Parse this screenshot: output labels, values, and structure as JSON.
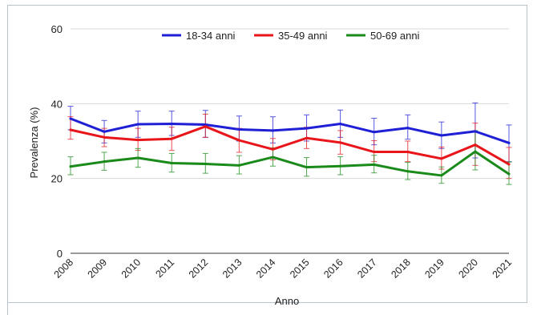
{
  "chart_data": {
    "type": "line",
    "xlabel": "Anno",
    "ylabel": "Prevalenza (%)",
    "ylim": [
      0,
      60
    ],
    "yticks": [
      "0",
      "20",
      "40",
      "60"
    ],
    "grid": "horizontal",
    "legend_position": "top",
    "categories": [
      "2008",
      "2009",
      "2010",
      "2011",
      "2012",
      "2013",
      "2014",
      "2015",
      "2016",
      "2017",
      "2018",
      "2019",
      "2020",
      "2021"
    ],
    "series": [
      {
        "name": "18-34 anni",
        "color": "#1f1fd6",
        "values": [
          36.0,
          32.5,
          34.5,
          34.6,
          34.4,
          33.1,
          32.8,
          33.4,
          34.6,
          32.4,
          33.5,
          31.5,
          32.6,
          29.5
        ],
        "error_low": [
          33.0,
          29.5,
          31.0,
          31.5,
          31.0,
          30.0,
          29.5,
          30.0,
          31.0,
          29.0,
          30.5,
          28.0,
          25.5,
          24.5
        ],
        "error_high": [
          39.3,
          35.5,
          38.0,
          38.0,
          38.2,
          36.7,
          36.5,
          37.0,
          38.3,
          36.1,
          37.0,
          35.1,
          40.2,
          34.3
        ]
      },
      {
        "name": "35-49 anni",
        "color": "#e8161b",
        "values": [
          33.0,
          31.0,
          30.3,
          30.6,
          33.9,
          30.2,
          27.8,
          30.8,
          29.6,
          27.1,
          27.1,
          25.3,
          29.0,
          23.8
        ],
        "error_low": [
          30.5,
          28.5,
          27.5,
          27.5,
          31.0,
          27.0,
          25.0,
          28.0,
          26.5,
          24.5,
          24.5,
          22.5,
          23.5,
          20.0
        ],
        "error_high": [
          36.5,
          33.4,
          33.4,
          33.7,
          37.2,
          33.4,
          30.7,
          33.7,
          32.8,
          30.1,
          30.0,
          28.4,
          34.8,
          28.3
        ]
      },
      {
        "name": "50-69 anni",
        "color": "#1a8a1a",
        "values": [
          23.2,
          24.5,
          25.5,
          24.1,
          23.9,
          23.5,
          25.7,
          23.0,
          23.3,
          23.7,
          21.9,
          20.8,
          27.2,
          21.2
        ],
        "error_low": [
          21.0,
          22.2,
          23.0,
          21.7,
          21.4,
          21.2,
          23.3,
          20.6,
          21.0,
          21.5,
          19.7,
          18.7,
          22.3,
          18.4
        ],
        "error_high": [
          25.8,
          27.0,
          28.0,
          26.7,
          26.7,
          26.1,
          28.2,
          25.6,
          25.8,
          26.2,
          24.3,
          23.1,
          32.8,
          24.4
        ]
      }
    ]
  }
}
